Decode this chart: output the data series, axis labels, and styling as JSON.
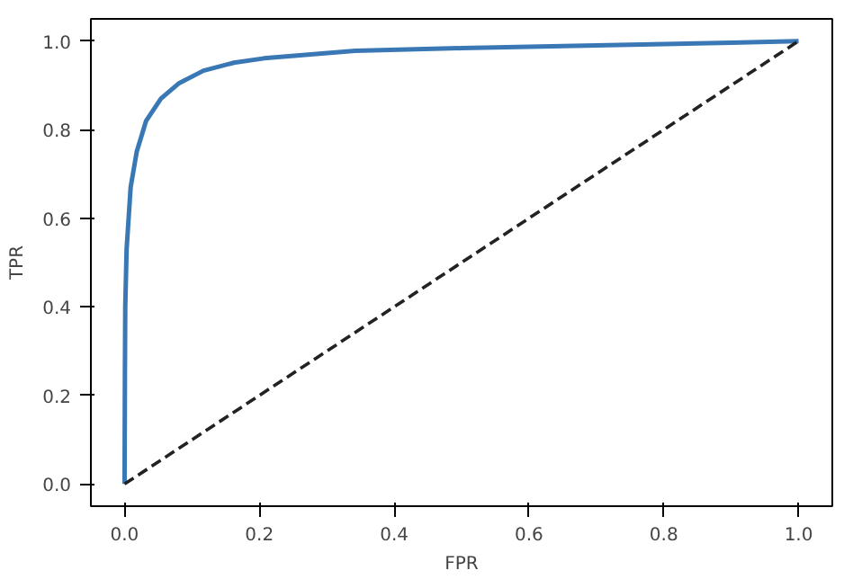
{
  "chart_data": {
    "type": "line",
    "xlabel": "FPR",
    "ylabel": "TPR",
    "xlim": [
      -0.05,
      1.05
    ],
    "ylim": [
      -0.05,
      1.05
    ],
    "xticks": [
      {
        "value": 0,
        "label": "0.0"
      },
      0.2,
      0.4,
      0.6,
      0.8,
      {
        "value": 1,
        "label": "1.0"
      }
    ],
    "yticks": [
      {
        "value": 0,
        "label": "0.0"
      },
      0.2,
      0.4,
      0.6,
      0.8,
      {
        "value": 1,
        "label": "1.0"
      }
    ],
    "grid": false,
    "series": [
      {
        "color": "#3a78b5",
        "line_style": "solid",
        "x": [
          0,
          0.0005,
          0.001,
          0.003,
          0.009,
          0.018,
          0.032,
          0.054,
          0.081,
          0.117,
          0.162,
          0.207,
          0.342,
          0.5,
          0.7,
          0.9,
          1.0
        ],
        "values": [
          0,
          0.25,
          0.4,
          0.53,
          0.67,
          0.75,
          0.82,
          0.87,
          0.905,
          0.933,
          0.951,
          0.961,
          0.978,
          0.984,
          0.99,
          0.996,
          1.0
        ]
      },
      {
        "color": "#222222",
        "line_style": "dashed",
        "x": [
          0,
          1
        ],
        "values": [
          0,
          1
        ]
      }
    ]
  }
}
